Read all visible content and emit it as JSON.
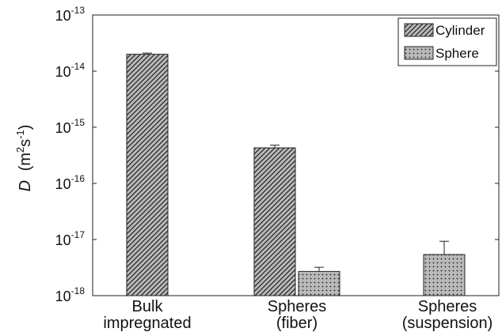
{
  "chart_data": {
    "type": "bar",
    "yscale": "log",
    "ylim": [
      1e-18,
      1e-13
    ],
    "ylabel_main": "D",
    "ylabel_units_prefix": "(m",
    "ylabel_units_sup1": "2",
    "ylabel_units_mid": "s",
    "ylabel_units_sup2": "-1",
    "ylabel_units_suffix": ")",
    "yticks": [
      {
        "value": 1e-18,
        "base": "10",
        "exp": "-18"
      },
      {
        "value": 1e-17,
        "base": "10",
        "exp": "-17"
      },
      {
        "value": 1e-16,
        "base": "10",
        "exp": "-16"
      },
      {
        "value": 1e-15,
        "base": "10",
        "exp": "-15"
      },
      {
        "value": 1e-14,
        "base": "10",
        "exp": "-14"
      },
      {
        "value": 1e-13,
        "base": "10",
        "exp": "-13"
      }
    ],
    "categories": [
      {
        "line1": "Bulk",
        "line2": "impregnated"
      },
      {
        "line1": "Spheres",
        "line2": "(fiber)"
      },
      {
        "line1": "Spheres",
        "line2": "(suspension)"
      }
    ],
    "series": [
      {
        "name": "Cylinder",
        "pattern": "diagonal-hatch",
        "values": [
          2e-14,
          4.3e-16,
          null
        ],
        "error_upper": [
          2.1e-14,
          4.8e-16,
          null
        ]
      },
      {
        "name": "Sphere",
        "pattern": "dotted",
        "values": [
          null,
          2.7e-18,
          5.4e-18
        ],
        "error_upper": [
          null,
          3.2e-18,
          9.3e-18
        ]
      }
    ],
    "legend_position": "top-right",
    "colors": {
      "bar_fill": "#b9b9b9",
      "hatch": "#222222",
      "axis": "#222222"
    }
  }
}
